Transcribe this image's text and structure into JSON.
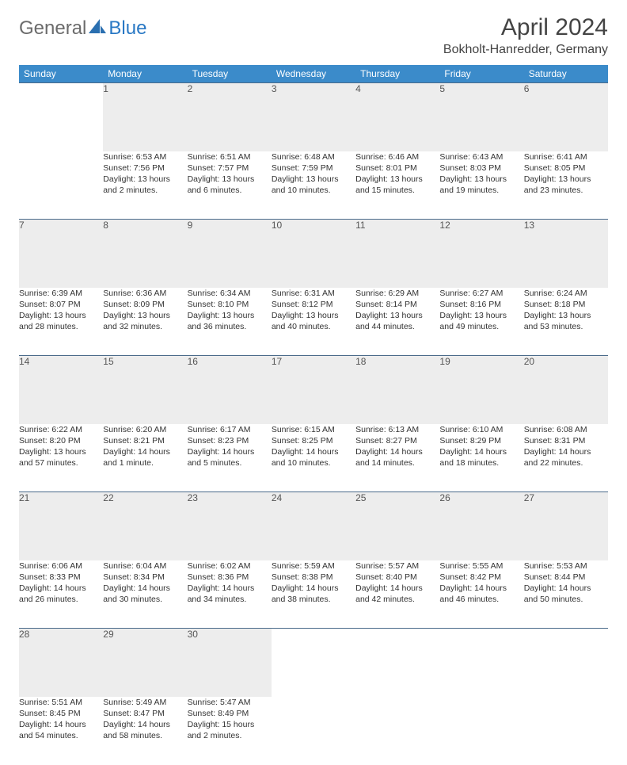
{
  "brand": {
    "part1": "General",
    "part2": "Blue"
  },
  "title": "April 2024",
  "location": "Bokholt-Hanredder, Germany",
  "colors": {
    "header_bg": "#3b8bca",
    "header_text": "#ffffff",
    "daynum_bg": "#ededed",
    "border": "#4a6a8a",
    "body_text": "#333333",
    "logo_grey": "#6b6b6b",
    "logo_blue": "#2978c4"
  },
  "weekdays": [
    "Sunday",
    "Monday",
    "Tuesday",
    "Wednesday",
    "Thursday",
    "Friday",
    "Saturday"
  ],
  "weeks": [
    [
      null,
      {
        "n": "1",
        "sr": "Sunrise: 6:53 AM",
        "ss": "Sunset: 7:56 PM",
        "d1": "Daylight: 13 hours",
        "d2": "and 2 minutes."
      },
      {
        "n": "2",
        "sr": "Sunrise: 6:51 AM",
        "ss": "Sunset: 7:57 PM",
        "d1": "Daylight: 13 hours",
        "d2": "and 6 minutes."
      },
      {
        "n": "3",
        "sr": "Sunrise: 6:48 AM",
        "ss": "Sunset: 7:59 PM",
        "d1": "Daylight: 13 hours",
        "d2": "and 10 minutes."
      },
      {
        "n": "4",
        "sr": "Sunrise: 6:46 AM",
        "ss": "Sunset: 8:01 PM",
        "d1": "Daylight: 13 hours",
        "d2": "and 15 minutes."
      },
      {
        "n": "5",
        "sr": "Sunrise: 6:43 AM",
        "ss": "Sunset: 8:03 PM",
        "d1": "Daylight: 13 hours",
        "d2": "and 19 minutes."
      },
      {
        "n": "6",
        "sr": "Sunrise: 6:41 AM",
        "ss": "Sunset: 8:05 PM",
        "d1": "Daylight: 13 hours",
        "d2": "and 23 minutes."
      }
    ],
    [
      {
        "n": "7",
        "sr": "Sunrise: 6:39 AM",
        "ss": "Sunset: 8:07 PM",
        "d1": "Daylight: 13 hours",
        "d2": "and 28 minutes."
      },
      {
        "n": "8",
        "sr": "Sunrise: 6:36 AM",
        "ss": "Sunset: 8:09 PM",
        "d1": "Daylight: 13 hours",
        "d2": "and 32 minutes."
      },
      {
        "n": "9",
        "sr": "Sunrise: 6:34 AM",
        "ss": "Sunset: 8:10 PM",
        "d1": "Daylight: 13 hours",
        "d2": "and 36 minutes."
      },
      {
        "n": "10",
        "sr": "Sunrise: 6:31 AM",
        "ss": "Sunset: 8:12 PM",
        "d1": "Daylight: 13 hours",
        "d2": "and 40 minutes."
      },
      {
        "n": "11",
        "sr": "Sunrise: 6:29 AM",
        "ss": "Sunset: 8:14 PM",
        "d1": "Daylight: 13 hours",
        "d2": "and 44 minutes."
      },
      {
        "n": "12",
        "sr": "Sunrise: 6:27 AM",
        "ss": "Sunset: 8:16 PM",
        "d1": "Daylight: 13 hours",
        "d2": "and 49 minutes."
      },
      {
        "n": "13",
        "sr": "Sunrise: 6:24 AM",
        "ss": "Sunset: 8:18 PM",
        "d1": "Daylight: 13 hours",
        "d2": "and 53 minutes."
      }
    ],
    [
      {
        "n": "14",
        "sr": "Sunrise: 6:22 AM",
        "ss": "Sunset: 8:20 PM",
        "d1": "Daylight: 13 hours",
        "d2": "and 57 minutes."
      },
      {
        "n": "15",
        "sr": "Sunrise: 6:20 AM",
        "ss": "Sunset: 8:21 PM",
        "d1": "Daylight: 14 hours",
        "d2": "and 1 minute."
      },
      {
        "n": "16",
        "sr": "Sunrise: 6:17 AM",
        "ss": "Sunset: 8:23 PM",
        "d1": "Daylight: 14 hours",
        "d2": "and 5 minutes."
      },
      {
        "n": "17",
        "sr": "Sunrise: 6:15 AM",
        "ss": "Sunset: 8:25 PM",
        "d1": "Daylight: 14 hours",
        "d2": "and 10 minutes."
      },
      {
        "n": "18",
        "sr": "Sunrise: 6:13 AM",
        "ss": "Sunset: 8:27 PM",
        "d1": "Daylight: 14 hours",
        "d2": "and 14 minutes."
      },
      {
        "n": "19",
        "sr": "Sunrise: 6:10 AM",
        "ss": "Sunset: 8:29 PM",
        "d1": "Daylight: 14 hours",
        "d2": "and 18 minutes."
      },
      {
        "n": "20",
        "sr": "Sunrise: 6:08 AM",
        "ss": "Sunset: 8:31 PM",
        "d1": "Daylight: 14 hours",
        "d2": "and 22 minutes."
      }
    ],
    [
      {
        "n": "21",
        "sr": "Sunrise: 6:06 AM",
        "ss": "Sunset: 8:33 PM",
        "d1": "Daylight: 14 hours",
        "d2": "and 26 minutes."
      },
      {
        "n": "22",
        "sr": "Sunrise: 6:04 AM",
        "ss": "Sunset: 8:34 PM",
        "d1": "Daylight: 14 hours",
        "d2": "and 30 minutes."
      },
      {
        "n": "23",
        "sr": "Sunrise: 6:02 AM",
        "ss": "Sunset: 8:36 PM",
        "d1": "Daylight: 14 hours",
        "d2": "and 34 minutes."
      },
      {
        "n": "24",
        "sr": "Sunrise: 5:59 AM",
        "ss": "Sunset: 8:38 PM",
        "d1": "Daylight: 14 hours",
        "d2": "and 38 minutes."
      },
      {
        "n": "25",
        "sr": "Sunrise: 5:57 AM",
        "ss": "Sunset: 8:40 PM",
        "d1": "Daylight: 14 hours",
        "d2": "and 42 minutes."
      },
      {
        "n": "26",
        "sr": "Sunrise: 5:55 AM",
        "ss": "Sunset: 8:42 PM",
        "d1": "Daylight: 14 hours",
        "d2": "and 46 minutes."
      },
      {
        "n": "27",
        "sr": "Sunrise: 5:53 AM",
        "ss": "Sunset: 8:44 PM",
        "d1": "Daylight: 14 hours",
        "d2": "and 50 minutes."
      }
    ],
    [
      {
        "n": "28",
        "sr": "Sunrise: 5:51 AM",
        "ss": "Sunset: 8:45 PM",
        "d1": "Daylight: 14 hours",
        "d2": "and 54 minutes."
      },
      {
        "n": "29",
        "sr": "Sunrise: 5:49 AM",
        "ss": "Sunset: 8:47 PM",
        "d1": "Daylight: 14 hours",
        "d2": "and 58 minutes."
      },
      {
        "n": "30",
        "sr": "Sunrise: 5:47 AM",
        "ss": "Sunset: 8:49 PM",
        "d1": "Daylight: 15 hours",
        "d2": "and 2 minutes."
      },
      null,
      null,
      null,
      null
    ]
  ]
}
